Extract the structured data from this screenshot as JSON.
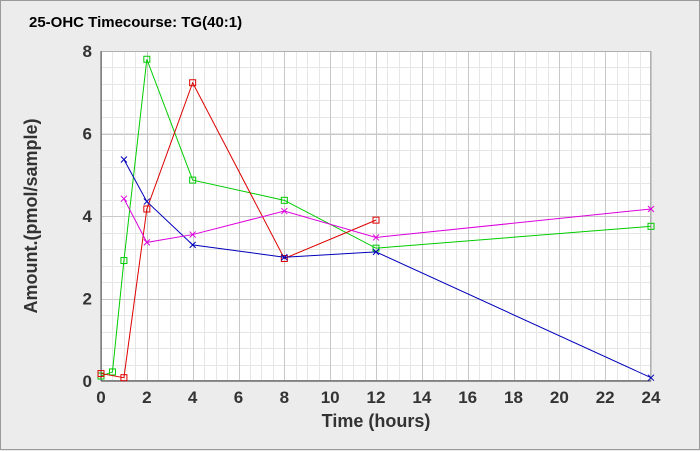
{
  "chart_data": {
    "type": "line",
    "title": "25-OHC Timecourse: TG(40:1)",
    "xlabel": "Time (hours)",
    "ylabel": "Amount.(pmol/sample)",
    "xlim": [
      0,
      24
    ],
    "ylim": [
      0,
      8
    ],
    "x_ticks": [
      0,
      2,
      4,
      6,
      8,
      10,
      12,
      14,
      16,
      18,
      20,
      22,
      24
    ],
    "y_ticks": [
      0,
      2,
      4,
      6,
      8
    ],
    "grid": true,
    "legend": "none",
    "series": [
      {
        "color": "#00cc00",
        "marker": "square",
        "x": [
          0,
          0.5,
          1,
          2,
          4,
          8,
          12,
          24
        ],
        "y": [
          0.12,
          0.22,
          2.92,
          7.8,
          4.87,
          4.38,
          3.22,
          3.75
        ]
      },
      {
        "color": "#dd0000",
        "marker": "square",
        "x": [
          0,
          1,
          2,
          4,
          8,
          12
        ],
        "y": [
          0.18,
          0.08,
          4.17,
          7.23,
          2.97,
          3.9
        ]
      },
      {
        "color": "#0000bb",
        "marker": "x",
        "x": [
          1,
          2,
          4,
          8,
          12,
          24
        ],
        "y": [
          5.37,
          4.35,
          3.3,
          3.0,
          3.13,
          0.08
        ]
      },
      {
        "color": "#dd00dd",
        "marker": "x",
        "x": [
          1,
          2,
          4,
          8,
          12,
          24
        ],
        "y": [
          4.42,
          3.36,
          3.55,
          4.12,
          3.48,
          4.17
        ]
      }
    ]
  }
}
